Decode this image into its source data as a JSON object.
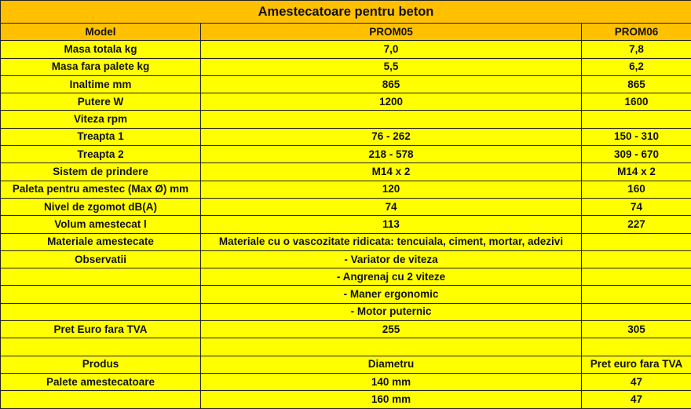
{
  "title": "Amestecatoare pentru beton",
  "colors": {
    "header": "#FFC000",
    "body": "#FFFF00",
    "border": "#222222"
  },
  "header": [
    "Model",
    "PROM05",
    "PROM06"
  ],
  "rows": [
    [
      "Masa totala kg",
      "7,0",
      "7,8"
    ],
    [
      "Masa fara palete kg",
      "5,5",
      "6,2"
    ],
    [
      "Inaltime mm",
      "865",
      "865"
    ],
    [
      "Putere W",
      "1200",
      "1600"
    ],
    [
      "Viteza rpm",
      "",
      ""
    ],
    [
      "Treapta 1",
      "76 - 262",
      "150 - 310"
    ],
    [
      "Treapta 2",
      "218 - 578",
      "309 - 670"
    ],
    [
      "Sistem de prindere",
      "M14 x 2",
      "M14 x 2"
    ],
    [
      "Paleta pentru amestec (Max Ø) mm",
      "120",
      "160"
    ],
    [
      "Nivel de zgomot dB(A)",
      "74",
      "74"
    ],
    [
      "Volum amestecat l",
      "113",
      "227"
    ],
    [
      "Materiale amestecate",
      "Materiale cu o vascozitate ridicata: tencuiala, ciment, mortar, adezivi",
      ""
    ],
    [
      "Observatii",
      "- Variator de viteza",
      ""
    ],
    [
      "",
      "- Angrenaj cu 2 viteze",
      ""
    ],
    [
      "",
      "- Maner ergonomic",
      ""
    ],
    [
      "",
      "- Motor puternic",
      ""
    ],
    [
      "Pret Euro fara TVA",
      "255",
      "305"
    ],
    [
      "",
      "",
      ""
    ],
    [
      "Produs",
      "Diametru",
      "Pret euro fara TVA"
    ],
    [
      "Palete amestecatoare",
      "140 mm",
      "47"
    ],
    [
      "",
      "160 mm",
      "47"
    ]
  ]
}
